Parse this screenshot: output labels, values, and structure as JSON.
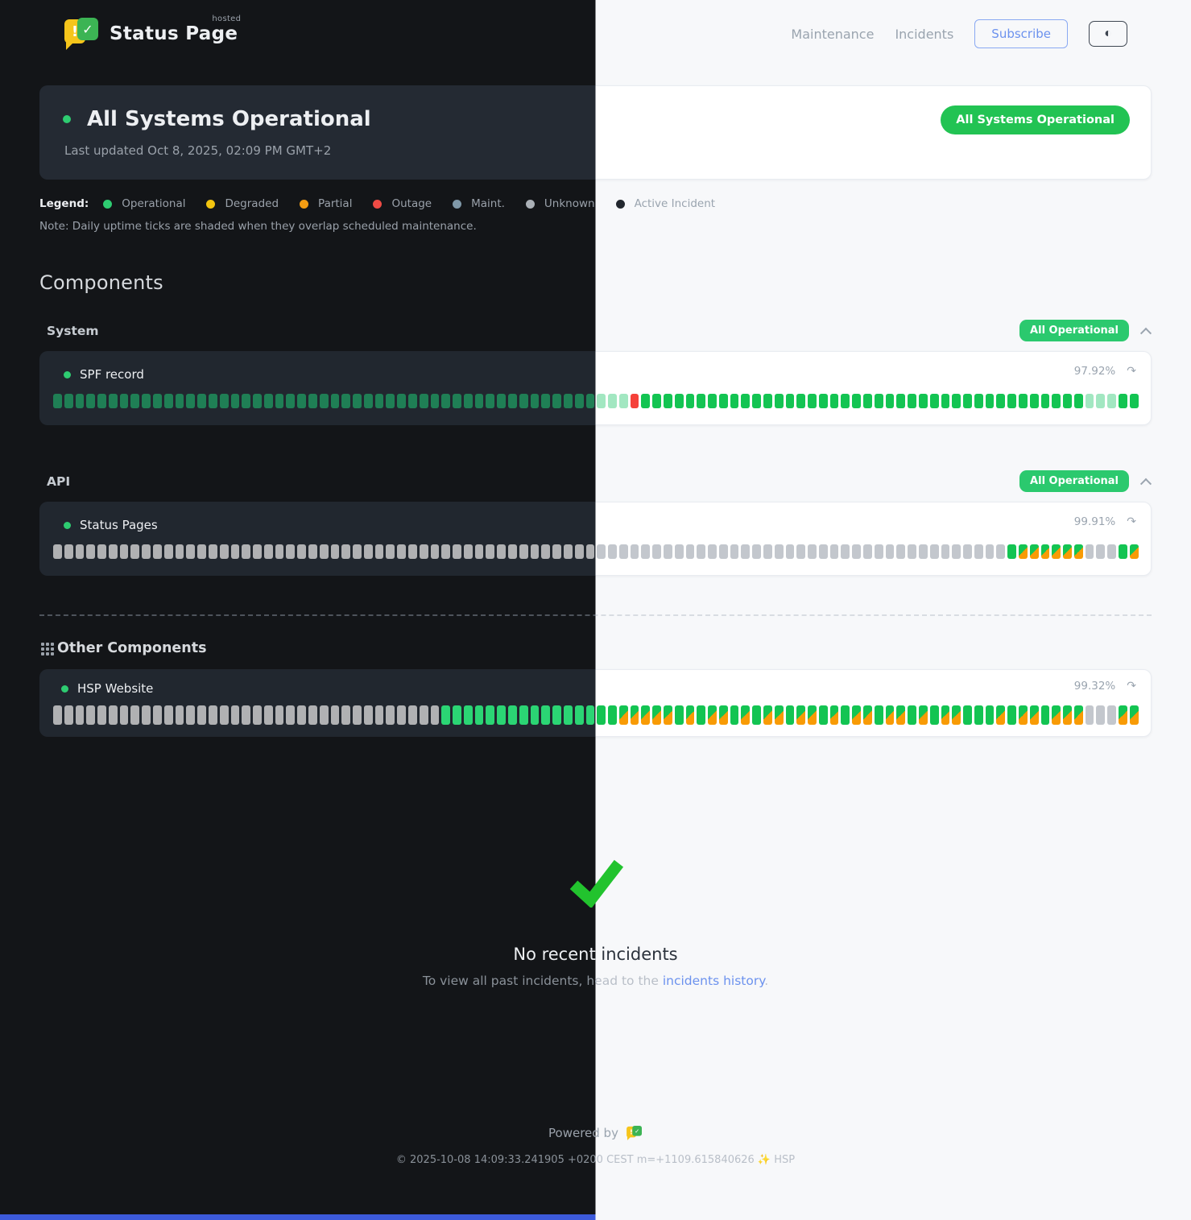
{
  "icons": {
    "logo_exclaim": "!",
    "logo_check": "✓",
    "theme_toggle": "◐",
    "trend": "↷"
  },
  "header": {
    "brand": "Status Page",
    "hosted": "hosted",
    "nav": [
      {
        "label": "Maintenance"
      },
      {
        "label": "Incidents"
      }
    ],
    "subscribe_label": "Subscribe"
  },
  "banner": {
    "title": "All Systems Operational",
    "last_updated": "Last updated Oct 8, 2025, 02:09 PM GMT+2",
    "badge": "All Systems Operational"
  },
  "legend": {
    "label": "Legend:",
    "items": [
      {
        "label": "Operational",
        "color": "#2ecc71"
      },
      {
        "label": "Degraded",
        "color": "#f2c40f"
      },
      {
        "label": "Partial",
        "color": "#f39c12"
      },
      {
        "label": "Outage",
        "color": "#ee4b45"
      },
      {
        "label": "Maint.",
        "color": "#7f98a8"
      },
      {
        "label": "Unknown",
        "color": "#aab0b6"
      },
      {
        "label": "Active Incident",
        "color": "#22272e"
      }
    ],
    "note": "Note: Daily uptime ticks are shaded when they overlap scheduled maintenance."
  },
  "components": {
    "heading": "Components",
    "groups": [
      {
        "name": "System",
        "badge": "All Operational",
        "items": [
          {
            "name": "SPF record",
            "uptime": "97.92%",
            "ticks": "ooooooooooooooooooooooooooooooooooooooooooooooooosssdoooooooooooooooooooooooooooooooooooooooosssoo"
          }
        ]
      },
      {
        "name": "API",
        "badge": "All Operational",
        "items": [
          {
            "name": "Status Pages",
            "uptime": "99.91%",
            "ticks": "uuuuuuuuuuuuuuuuuuuuuuuuuuuuuuuuuuuuuuuuuuuuuuuuuuuuuuuuuuuuuuuuuuuuuuuuuuuuuuuuuuuuuuOmmmmmmuuuOm"
          }
        ]
      }
    ],
    "other": {
      "heading": "Other Components",
      "items": [
        {
          "name": "HSP Website",
          "uptime": "99.32%",
          "ticks": "uuuuuuuuuuuuuuuuuuuuuuuuuuuuuuuuuuuOOOOOOOOOOOOOOOOmmmmmOmOmmOmOmmOmmOmOmmOmmOmOmmOOOmOmmOmmmuuumm"
        }
      ]
    }
  },
  "incidents": {
    "title": "No recent incidents",
    "subtitle_prefix": "To view all past incidents, head to the ",
    "link": "incidents history",
    "suffix": "."
  },
  "footer": {
    "powered_by": "Powered by",
    "copyright": "© 2025-10-08 14:09:33.241905 +0200 CEST m=+1109.615840626 ✨ HSP"
  },
  "colors": {
    "operational_green": "#2ecc71",
    "light_tick_green": "#13c452",
    "dark_tick_green": "#1f7f55",
    "mixed_orange": "#f89b05",
    "outage_red": "#f5413a",
    "pill_green": "#22c353",
    "link_blue": "#6c92ee",
    "check_green": "#22c32e",
    "bottom_bar_blue": "#3c5ada"
  }
}
